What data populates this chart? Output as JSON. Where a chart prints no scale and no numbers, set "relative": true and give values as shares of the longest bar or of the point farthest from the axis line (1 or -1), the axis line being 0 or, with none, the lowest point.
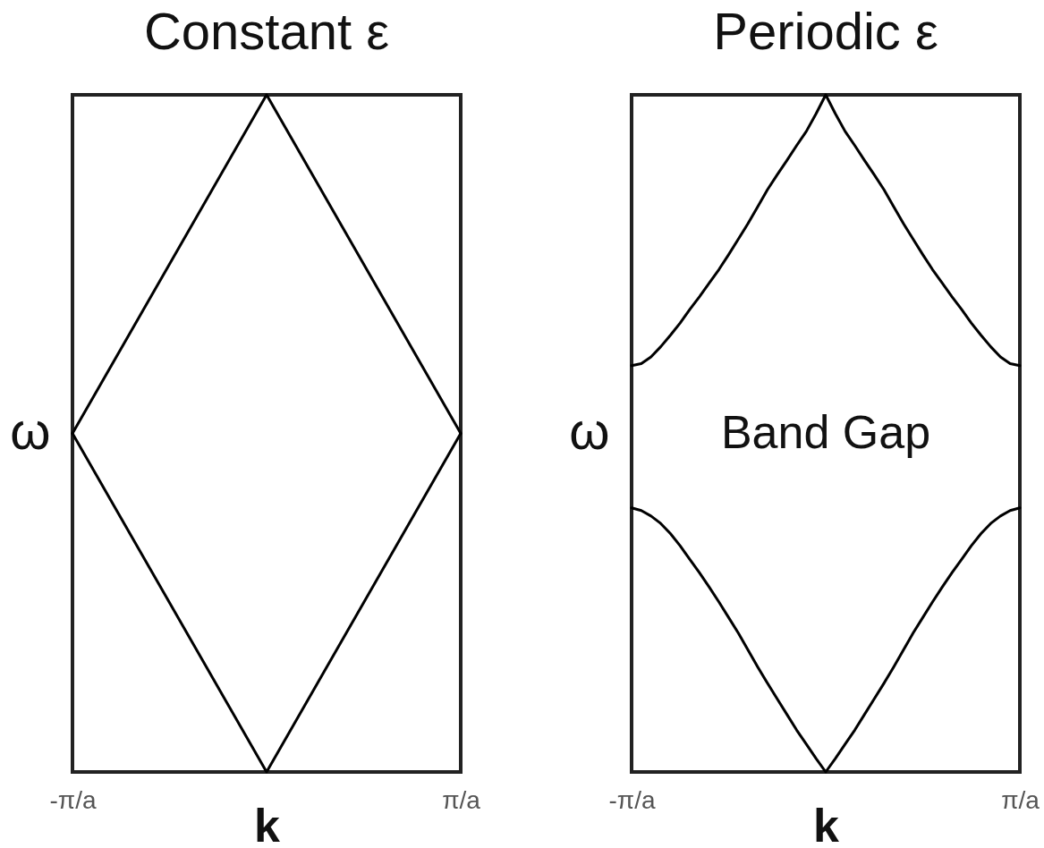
{
  "chart_data": [
    {
      "type": "line",
      "title": "Constant ε",
      "xlabel": "k",
      "ylabel": "ω",
      "relative": true,
      "categories": [
        "-π/a",
        null,
        "π/a"
      ],
      "series": [
        {
          "color": "#000000",
          "values": [
            0.5,
            1,
            0.5
          ]
        },
        {
          "color": "#000000",
          "values": [
            0.5,
            0,
            0.5
          ]
        }
      ]
    },
    {
      "type": "line",
      "title": "Periodic ε",
      "xlabel": "k",
      "ylabel": "ω",
      "relative": true,
      "annotations": [
        "Band Gap"
      ],
      "categories": [
        "-π/a",
        null,
        null,
        null,
        null,
        null,
        null,
        null,
        null,
        null,
        null,
        null,
        null,
        null,
        null,
        null,
        null,
        null,
        null,
        null,
        null,
        null,
        null,
        null,
        null,
        null,
        null,
        null,
        null,
        null,
        null,
        null,
        null,
        null,
        null,
        null,
        null,
        null,
        null,
        null,
        "π/a"
      ],
      "series": [
        {
          "color": "#000000",
          "values": [
            0.6,
            0.603,
            0.613,
            0.628,
            0.645,
            0.663,
            0.683,
            0.702,
            0.722,
            0.742,
            0.764,
            0.787,
            0.81,
            0.835,
            0.86,
            0.882,
            0.903,
            0.925,
            0.946,
            0.972,
            1,
            0.972,
            0.946,
            0.925,
            0.903,
            0.882,
            0.86,
            0.835,
            0.81,
            0.787,
            0.764,
            0.742,
            0.722,
            0.702,
            0.683,
            0.663,
            0.645,
            0.628,
            0.613,
            0.603,
            0.6
          ]
        },
        {
          "color": "#000000",
          "values": [
            0.39,
            0.386,
            0.378,
            0.367,
            0.352,
            0.334,
            0.314,
            0.294,
            0.273,
            0.251,
            0.228,
            0.205,
            0.18,
            0.155,
            0.131,
            0.108,
            0.085,
            0.062,
            0.041,
            0.02,
            0,
            0.02,
            0.041,
            0.062,
            0.085,
            0.108,
            0.131,
            0.155,
            0.18,
            0.205,
            0.228,
            0.251,
            0.273,
            0.294,
            0.314,
            0.334,
            0.352,
            0.367,
            0.378,
            0.386,
            0.39
          ]
        }
      ]
    }
  ]
}
